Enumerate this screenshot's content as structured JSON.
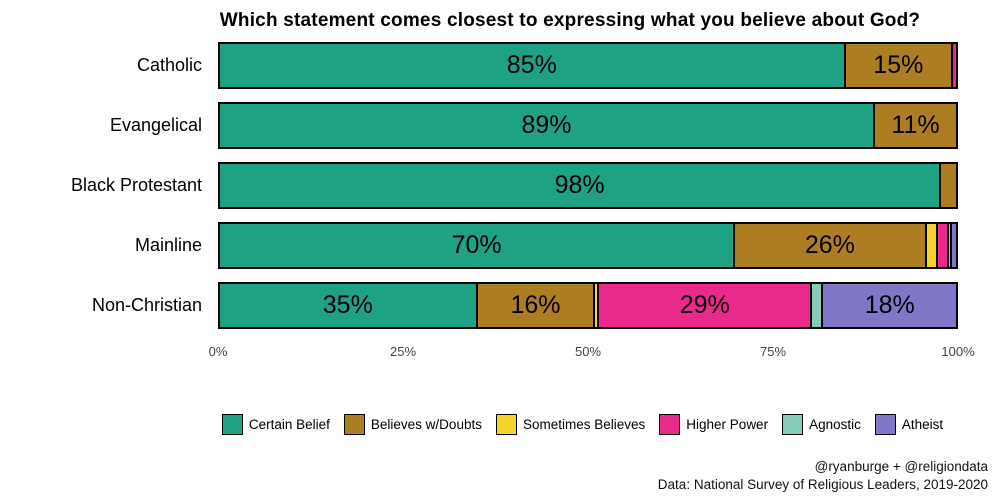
{
  "title": "Which statement comes closest to expressing what you believe about God?",
  "chart_data": {
    "type": "bar",
    "stacked": true,
    "orientation": "horizontal",
    "xlim": [
      0,
      100
    ],
    "label_threshold": 10,
    "categories": [
      "Catholic",
      "Evangelical",
      "Black Protestant",
      "Mainline",
      "Non-Christian"
    ],
    "series": [
      {
        "name": "Certain Belief",
        "color": "#1fa184",
        "values": [
          85,
          89,
          98,
          70,
          35
        ]
      },
      {
        "name": "Believes w/Doubts",
        "color": "#ac7e21",
        "values": [
          14.6,
          11,
          2,
          26,
          16
        ]
      },
      {
        "name": "Sometimes Believes",
        "color": "#f6d32b",
        "values": [
          0,
          0,
          0,
          1.5,
          0.5
        ]
      },
      {
        "name": "Higher Power",
        "color": "#ea2a8a",
        "values": [
          0.4,
          0,
          0,
          1.5,
          29
        ]
      },
      {
        "name": "Agnostic",
        "color": "#86ccb9",
        "values": [
          0,
          0,
          0,
          0.5,
          1.5
        ]
      },
      {
        "name": "Atheist",
        "color": "#8077c8",
        "values": [
          0,
          0,
          0,
          0.5,
          18
        ]
      }
    ],
    "x_ticks": [
      "0%",
      "25%",
      "50%",
      "75%",
      "100%"
    ]
  },
  "credits": {
    "line1": "@ryanburge + @religiondata",
    "line2": "Data: National Survey of Religious Leaders, 2019-2020"
  }
}
